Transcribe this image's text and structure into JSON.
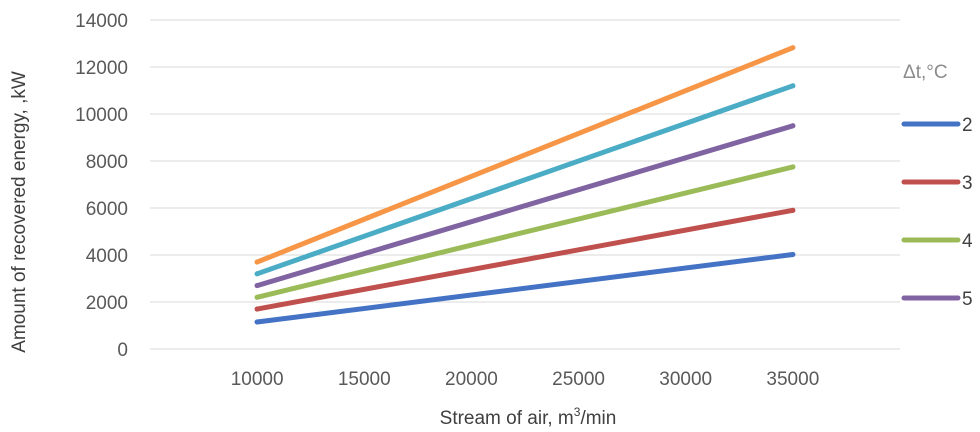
{
  "chart_data": {
    "type": "line",
    "title": "",
    "xlabel": "Stream of air, m³/min",
    "xlabel_main": "Stream of air, m",
    "xlabel_sup": "3",
    "xlabel_tail": "/min",
    "ylabel": "Amount of recovered energy, ,kW",
    "x": [
      10000,
      35000
    ],
    "xticks": [
      10000,
      15000,
      20000,
      25000,
      30000,
      35000
    ],
    "yticks": [
      0,
      2000,
      4000,
      6000,
      8000,
      10000,
      12000,
      14000
    ],
    "xlim": [
      5000,
      40000
    ],
    "ylim": [
      0,
      14000
    ],
    "grid": "horizontal",
    "legend_title": "Δt,°C",
    "legend_placement": "right",
    "series": [
      {
        "name": "2",
        "color": "#4472c4",
        "values": [
          1150,
          4020
        ]
      },
      {
        "name": "3",
        "color": "#c0504d",
        "values": [
          1700,
          5900
        ]
      },
      {
        "name": "4",
        "color": "#9bbb59",
        "values": [
          2200,
          7750
        ]
      },
      {
        "name": "5",
        "color": "#8064a2",
        "values": [
          2700,
          9500
        ]
      },
      {
        "color": "#4bacc6",
        "values": [
          3200,
          11200
        ]
      },
      {
        "color": "#f79646",
        "values": [
          3700,
          12820
        ]
      }
    ]
  }
}
